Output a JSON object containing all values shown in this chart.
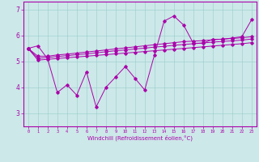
{
  "background_color": "#cce8e8",
  "line_color": "#aa00aa",
  "xlim": [
    -0.5,
    23.5
  ],
  "ylim": [
    2.5,
    7.3
  ],
  "yticks": [
    3,
    4,
    5,
    6,
    7
  ],
  "xticks": [
    0,
    1,
    2,
    3,
    4,
    5,
    6,
    7,
    8,
    9,
    10,
    11,
    12,
    13,
    14,
    15,
    16,
    17,
    18,
    19,
    20,
    21,
    22,
    23
  ],
  "xlabel": "Windchill (Refroidissement éolien,°C)",
  "series1": [
    5.5,
    5.6,
    5.1,
    3.8,
    4.1,
    3.7,
    4.6,
    3.25,
    4.0,
    4.4,
    4.8,
    4.35,
    3.9,
    5.25,
    6.55,
    6.75,
    6.4,
    5.7,
    5.7,
    5.85,
    5.85,
    5.9,
    5.95,
    6.6
  ],
  "series2": [
    5.5,
    5.2,
    5.2,
    5.25,
    5.28,
    5.32,
    5.36,
    5.4,
    5.44,
    5.48,
    5.52,
    5.56,
    5.6,
    5.64,
    5.68,
    5.72,
    5.76,
    5.78,
    5.8,
    5.83,
    5.86,
    5.88,
    5.91,
    5.95
  ],
  "series3": [
    5.5,
    5.12,
    5.15,
    5.19,
    5.22,
    5.26,
    5.29,
    5.33,
    5.37,
    5.41,
    5.44,
    5.48,
    5.51,
    5.55,
    5.58,
    5.62,
    5.65,
    5.68,
    5.71,
    5.74,
    5.77,
    5.79,
    5.82,
    5.86
  ],
  "series4": [
    5.5,
    5.05,
    5.08,
    5.11,
    5.14,
    5.17,
    5.2,
    5.23,
    5.26,
    5.29,
    5.32,
    5.35,
    5.38,
    5.41,
    5.44,
    5.47,
    5.5,
    5.53,
    5.56,
    5.59,
    5.62,
    5.65,
    5.68,
    5.72
  ]
}
